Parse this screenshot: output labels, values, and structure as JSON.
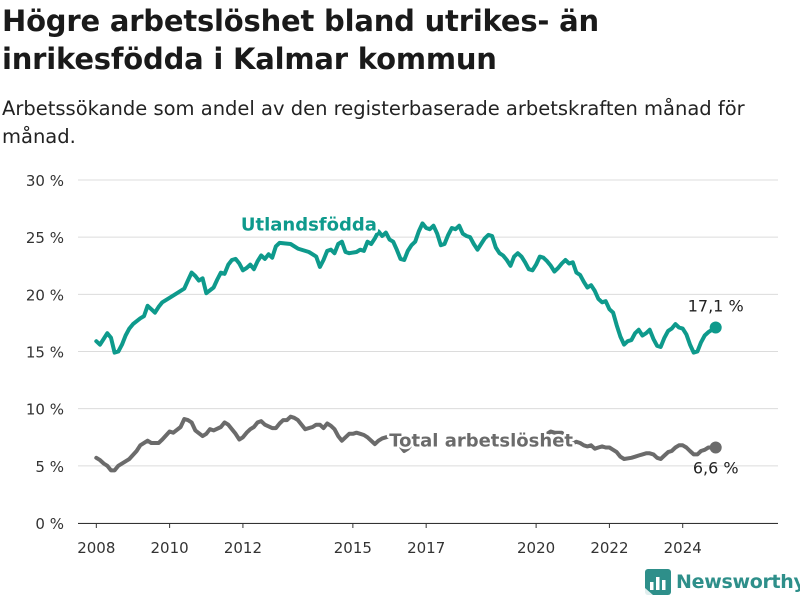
{
  "header": {
    "title": "Högre arbetslöshet bland utrikes- än inrikesfödda i Kalmar kommun",
    "subtitle": "Arbetssökande som andel av den registerbaserade arbetskraften månad för månad."
  },
  "brand": {
    "name": "Newsworthy",
    "icon": "newsworthy-logo-icon",
    "color": "#2e8f8a"
  },
  "chart_data": {
    "type": "line",
    "title": "Högre arbetslöshet bland utrikes- än inrikesfödda i Kalmar kommun",
    "subtitle": "Arbetssökande som andel av den registerbaserade arbetskraften månad för månad.",
    "xlabel": "",
    "ylabel": "",
    "xlim": [
      2007.5,
      2026.6
    ],
    "ylim": [
      0,
      30
    ],
    "yticks": [
      0,
      5,
      10,
      15,
      20,
      25,
      30
    ],
    "ytick_labels": [
      "0 %",
      "5 %",
      "10 %",
      "15 %",
      "20 %",
      "25 %",
      "30 %"
    ],
    "xticks": [
      2008,
      2010,
      2012,
      2015,
      2017,
      2020,
      2022,
      2024
    ],
    "xtick_labels": [
      "2008",
      "2010",
      "2012",
      "2015",
      "2017",
      "2020",
      "2022",
      "2024"
    ],
    "grid": true,
    "legend": "none (direct labels on lines)",
    "series": [
      {
        "name": "Utlandsfödda",
        "color": "#0e9a8c",
        "end_label": "17,1 %",
        "points": [
          [
            2008.0,
            15.9
          ],
          [
            2008.1,
            15.6
          ],
          [
            2008.2,
            16.1
          ],
          [
            2008.3,
            16.6
          ],
          [
            2008.4,
            16.2
          ],
          [
            2008.5,
            14.9
          ],
          [
            2008.6,
            15.0
          ],
          [
            2008.7,
            15.6
          ],
          [
            2008.8,
            16.4
          ],
          [
            2008.9,
            17.0
          ],
          [
            2009.0,
            17.4
          ],
          [
            2009.2,
            17.9
          ],
          [
            2009.3,
            18.1
          ],
          [
            2009.4,
            19.0
          ],
          [
            2009.5,
            18.7
          ],
          [
            2009.6,
            18.4
          ],
          [
            2009.7,
            18.9
          ],
          [
            2009.8,
            19.3
          ],
          [
            2010.0,
            19.7
          ],
          [
            2010.2,
            20.1
          ],
          [
            2010.4,
            20.5
          ],
          [
            2010.5,
            21.2
          ],
          [
            2010.6,
            21.9
          ],
          [
            2010.7,
            21.6
          ],
          [
            2010.8,
            21.2
          ],
          [
            2010.9,
            21.4
          ],
          [
            2011.0,
            20.1
          ],
          [
            2011.2,
            20.6
          ],
          [
            2011.3,
            21.3
          ],
          [
            2011.4,
            21.9
          ],
          [
            2011.5,
            21.8
          ],
          [
            2011.6,
            22.6
          ],
          [
            2011.7,
            23.0
          ],
          [
            2011.8,
            23.1
          ],
          [
            2011.9,
            22.7
          ],
          [
            2012.0,
            22.1
          ],
          [
            2012.1,
            22.3
          ],
          [
            2012.2,
            22.6
          ],
          [
            2012.3,
            22.2
          ],
          [
            2012.4,
            22.9
          ],
          [
            2012.5,
            23.4
          ],
          [
            2012.6,
            23.1
          ],
          [
            2012.7,
            23.5
          ],
          [
            2012.8,
            23.2
          ],
          [
            2012.9,
            24.2
          ],
          [
            2013.0,
            24.5
          ],
          [
            2013.3,
            24.4
          ],
          [
            2013.5,
            24.0
          ],
          [
            2013.8,
            23.7
          ],
          [
            2014.0,
            23.3
          ],
          [
            2014.1,
            22.4
          ],
          [
            2014.2,
            23.0
          ],
          [
            2014.3,
            23.8
          ],
          [
            2014.4,
            23.9
          ],
          [
            2014.5,
            23.6
          ],
          [
            2014.6,
            24.4
          ],
          [
            2014.7,
            24.6
          ],
          [
            2014.8,
            23.7
          ],
          [
            2014.9,
            23.6
          ],
          [
            2015.1,
            23.7
          ],
          [
            2015.2,
            23.9
          ],
          [
            2015.3,
            23.8
          ],
          [
            2015.4,
            24.6
          ],
          [
            2015.5,
            24.4
          ],
          [
            2015.6,
            24.9
          ],
          [
            2015.7,
            25.5
          ],
          [
            2015.8,
            25.1
          ],
          [
            2015.9,
            25.4
          ],
          [
            2016.0,
            24.8
          ],
          [
            2016.1,
            24.6
          ],
          [
            2016.2,
            23.9
          ],
          [
            2016.3,
            23.1
          ],
          [
            2016.4,
            23.0
          ],
          [
            2016.5,
            23.8
          ],
          [
            2016.6,
            24.3
          ],
          [
            2016.7,
            24.6
          ],
          [
            2016.8,
            25.5
          ],
          [
            2016.9,
            26.2
          ],
          [
            2017.0,
            25.8
          ],
          [
            2017.1,
            25.7
          ],
          [
            2017.2,
            26.0
          ],
          [
            2017.3,
            25.3
          ],
          [
            2017.4,
            24.3
          ],
          [
            2017.5,
            24.4
          ],
          [
            2017.6,
            25.2
          ],
          [
            2017.7,
            25.8
          ],
          [
            2017.8,
            25.7
          ],
          [
            2017.9,
            26.0
          ],
          [
            2018.0,
            25.3
          ],
          [
            2018.1,
            25.1
          ],
          [
            2018.2,
            25.0
          ],
          [
            2018.3,
            24.4
          ],
          [
            2018.4,
            23.9
          ],
          [
            2018.5,
            24.4
          ],
          [
            2018.6,
            24.9
          ],
          [
            2018.7,
            25.2
          ],
          [
            2018.8,
            25.1
          ],
          [
            2018.9,
            24.1
          ],
          [
            2019.0,
            23.6
          ],
          [
            2019.1,
            23.4
          ],
          [
            2019.2,
            23.0
          ],
          [
            2019.3,
            22.5
          ],
          [
            2019.4,
            23.3
          ],
          [
            2019.5,
            23.6
          ],
          [
            2019.6,
            23.3
          ],
          [
            2019.7,
            22.8
          ],
          [
            2019.8,
            22.2
          ],
          [
            2019.9,
            22.1
          ],
          [
            2020.0,
            22.6
          ],
          [
            2020.1,
            23.3
          ],
          [
            2020.2,
            23.2
          ],
          [
            2020.3,
            22.9
          ],
          [
            2020.4,
            22.5
          ],
          [
            2020.5,
            22.0
          ],
          [
            2020.6,
            22.3
          ],
          [
            2020.7,
            22.7
          ],
          [
            2020.8,
            23.0
          ],
          [
            2020.9,
            22.7
          ],
          [
            2021.0,
            22.8
          ],
          [
            2021.1,
            21.9
          ],
          [
            2021.2,
            21.7
          ],
          [
            2021.3,
            21.1
          ],
          [
            2021.4,
            20.6
          ],
          [
            2021.5,
            20.8
          ],
          [
            2021.6,
            20.3
          ],
          [
            2021.7,
            19.6
          ],
          [
            2021.8,
            19.3
          ],
          [
            2021.9,
            19.4
          ],
          [
            2022.0,
            18.7
          ],
          [
            2022.1,
            18.4
          ],
          [
            2022.2,
            17.3
          ],
          [
            2022.3,
            16.3
          ],
          [
            2022.4,
            15.6
          ],
          [
            2022.5,
            15.9
          ],
          [
            2022.6,
            16.0
          ],
          [
            2022.7,
            16.6
          ],
          [
            2022.8,
            16.9
          ],
          [
            2022.9,
            16.4
          ],
          [
            2023.0,
            16.6
          ],
          [
            2023.1,
            16.9
          ],
          [
            2023.2,
            16.1
          ],
          [
            2023.3,
            15.5
          ],
          [
            2023.4,
            15.4
          ],
          [
            2023.5,
            16.2
          ],
          [
            2023.6,
            16.8
          ],
          [
            2023.7,
            17.0
          ],
          [
            2023.8,
            17.4
          ],
          [
            2023.9,
            17.1
          ],
          [
            2024.0,
            17.0
          ],
          [
            2024.1,
            16.5
          ],
          [
            2024.2,
            15.6
          ],
          [
            2024.3,
            14.9
          ],
          [
            2024.4,
            15.0
          ],
          [
            2024.5,
            15.8
          ],
          [
            2024.6,
            16.4
          ],
          [
            2024.7,
            16.7
          ],
          [
            2024.9,
            17.1
          ]
        ]
      },
      {
        "name": "Total arbetslöshet",
        "color": "#6b6b6b",
        "end_label": "6,6 %",
        "points": [
          [
            2008.0,
            5.7
          ],
          [
            2008.1,
            5.5
          ],
          [
            2008.2,
            5.2
          ],
          [
            2008.3,
            5.0
          ],
          [
            2008.4,
            4.6
          ],
          [
            2008.5,
            4.6
          ],
          [
            2008.6,
            5.0
          ],
          [
            2008.8,
            5.4
          ],
          [
            2008.9,
            5.6
          ],
          [
            2009.1,
            6.3
          ],
          [
            2009.2,
            6.8
          ],
          [
            2009.4,
            7.2
          ],
          [
            2009.5,
            7.0
          ],
          [
            2009.7,
            7.0
          ],
          [
            2009.8,
            7.3
          ],
          [
            2010.0,
            8.0
          ],
          [
            2010.1,
            7.9
          ],
          [
            2010.3,
            8.4
          ],
          [
            2010.4,
            9.1
          ],
          [
            2010.5,
            9.0
          ],
          [
            2010.6,
            8.8
          ],
          [
            2010.7,
            8.1
          ],
          [
            2010.9,
            7.6
          ],
          [
            2011.0,
            7.8
          ],
          [
            2011.1,
            8.2
          ],
          [
            2011.2,
            8.1
          ],
          [
            2011.4,
            8.4
          ],
          [
            2011.5,
            8.8
          ],
          [
            2011.6,
            8.6
          ],
          [
            2011.8,
            7.8
          ],
          [
            2011.9,
            7.3
          ],
          [
            2012.0,
            7.5
          ],
          [
            2012.1,
            7.9
          ],
          [
            2012.2,
            8.2
          ],
          [
            2012.3,
            8.4
          ],
          [
            2012.4,
            8.8
          ],
          [
            2012.5,
            8.9
          ],
          [
            2012.6,
            8.6
          ],
          [
            2012.8,
            8.3
          ],
          [
            2012.9,
            8.3
          ],
          [
            2013.0,
            8.7
          ],
          [
            2013.1,
            9.0
          ],
          [
            2013.2,
            9.0
          ],
          [
            2013.3,
            9.3
          ],
          [
            2013.4,
            9.2
          ],
          [
            2013.5,
            9.0
          ],
          [
            2013.6,
            8.6
          ],
          [
            2013.7,
            8.2
          ],
          [
            2013.9,
            8.4
          ],
          [
            2014.0,
            8.6
          ],
          [
            2014.1,
            8.6
          ],
          [
            2014.2,
            8.3
          ],
          [
            2014.3,
            8.7
          ],
          [
            2014.4,
            8.5
          ],
          [
            2014.5,
            8.2
          ],
          [
            2014.6,
            7.6
          ],
          [
            2014.7,
            7.2
          ],
          [
            2014.8,
            7.5
          ],
          [
            2014.9,
            7.8
          ],
          [
            2015.0,
            7.8
          ],
          [
            2015.1,
            7.9
          ],
          [
            2015.2,
            7.8
          ],
          [
            2015.3,
            7.7
          ],
          [
            2015.4,
            7.5
          ],
          [
            2015.6,
            6.9
          ],
          [
            2015.7,
            7.2
          ],
          [
            2015.8,
            7.4
          ],
          [
            2015.9,
            7.5
          ],
          [
            2016.0,
            7.6
          ],
          [
            2016.1,
            7.6
          ],
          [
            2016.2,
            7.2
          ],
          [
            2016.3,
            6.7
          ],
          [
            2016.4,
            6.3
          ],
          [
            2016.5,
            6.5
          ],
          [
            2016.6,
            6.9
          ],
          [
            2016.7,
            7.1
          ],
          [
            2016.8,
            7.2
          ],
          [
            2020.3,
            7.8
          ],
          [
            2020.4,
            8.0
          ],
          [
            2020.5,
            7.9
          ],
          [
            2020.6,
            7.9
          ],
          [
            2020.7,
            7.9
          ],
          [
            2020.8,
            7.5
          ],
          [
            2020.9,
            7.2
          ],
          [
            2021.0,
            7.0
          ],
          [
            2021.1,
            7.1
          ],
          [
            2021.2,
            7.0
          ],
          [
            2021.3,
            6.8
          ],
          [
            2021.4,
            6.7
          ],
          [
            2021.5,
            6.8
          ],
          [
            2021.6,
            6.5
          ],
          [
            2021.7,
            6.6
          ],
          [
            2021.8,
            6.7
          ],
          [
            2021.9,
            6.6
          ],
          [
            2022.0,
            6.6
          ],
          [
            2022.1,
            6.4
          ],
          [
            2022.2,
            6.2
          ],
          [
            2022.3,
            5.8
          ],
          [
            2022.4,
            5.6
          ],
          [
            2022.6,
            5.7
          ],
          [
            2022.7,
            5.8
          ],
          [
            2022.8,
            5.9
          ],
          [
            2022.9,
            6.0
          ],
          [
            2023.0,
            6.1
          ],
          [
            2023.1,
            6.1
          ],
          [
            2023.2,
            6.0
          ],
          [
            2023.3,
            5.7
          ],
          [
            2023.4,
            5.6
          ],
          [
            2023.5,
            5.9
          ],
          [
            2023.6,
            6.2
          ],
          [
            2023.7,
            6.3
          ],
          [
            2023.8,
            6.6
          ],
          [
            2023.9,
            6.8
          ],
          [
            2024.0,
            6.8
          ],
          [
            2024.1,
            6.6
          ],
          [
            2024.2,
            6.3
          ],
          [
            2024.3,
            6.0
          ],
          [
            2024.4,
            6.0
          ],
          [
            2024.5,
            6.3
          ],
          [
            2024.6,
            6.4
          ],
          [
            2024.7,
            6.6
          ],
          [
            2024.9,
            6.6
          ]
        ]
      }
    ],
    "annotations": [
      {
        "text": "Utlandsfödda",
        "series": "Utlandsfödda",
        "at": [
          2013.8,
          25.6
        ],
        "color": "#0e9a8c"
      },
      {
        "text": "Total arbetslöshet",
        "series": "Total arbetslöshet",
        "at": [
          2018.5,
          6.7
        ],
        "color": "#6b6b6b"
      }
    ]
  }
}
